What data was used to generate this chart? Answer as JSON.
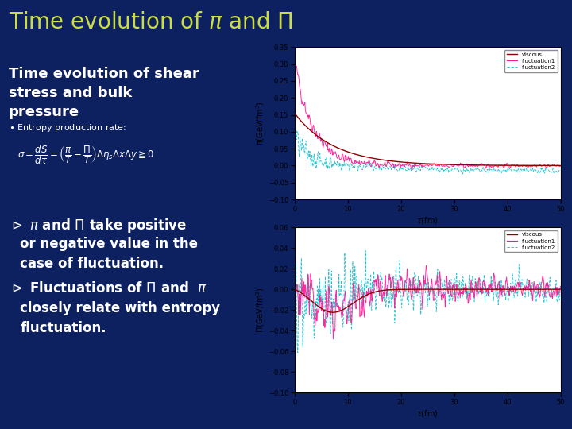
{
  "title": "Time evolution of $\\pi$ and $\\Pi$",
  "title_color": "#CCDD44",
  "bg_color": "#0d2060",
  "left_title": "Time evolution of shear\nstress and bulk\npressure",
  "entropy_label": "Entropy production rate:",
  "bullet1_line1": "$\\vartriangleright$ $\\pi$ and $\\Pi$ take positive",
  "bullet1_line2": "   or negative value in the",
  "bullet1_line3": "   case of fluctuation.",
  "bullet2_line1": "$\\vartriangleright$ Fluctuations of $\\Pi$ and  $\\pi$",
  "bullet2_line2": "   closely relate with entropy",
  "bullet2_line3": "   fluctuation.",
  "top_plot": {
    "ylabel": "$\\pi$(GeV/fm$^3$)",
    "xlabel": "$\\tau$(fm)",
    "ylim": [
      -0.1,
      0.35
    ],
    "xlim": [
      0,
      50
    ],
    "yticks": [
      -0.1,
      -0.05,
      0,
      0.05,
      0.1,
      0.15,
      0.2,
      0.25,
      0.3,
      0.35
    ],
    "xticks": [
      0,
      10,
      20,
      30,
      40,
      50
    ]
  },
  "bottom_plot": {
    "ylabel": "$\\Pi$(GeV/fm$^3$)",
    "xlabel": "$\\tau$(fm)",
    "ylim": [
      -0.1,
      0.06
    ],
    "xlim": [
      0,
      50
    ],
    "yticks": [
      -0.1,
      -0.08,
      -0.06,
      -0.04,
      -0.02,
      0,
      0.02,
      0.04,
      0.06
    ],
    "xticks": [
      0,
      10,
      20,
      30,
      40,
      50
    ]
  },
  "viscous_color": "#8B0000",
  "fluct1_color": "#FF1493",
  "fluct2_color": "#00BBCC",
  "plot_border_color": "#4466AA"
}
